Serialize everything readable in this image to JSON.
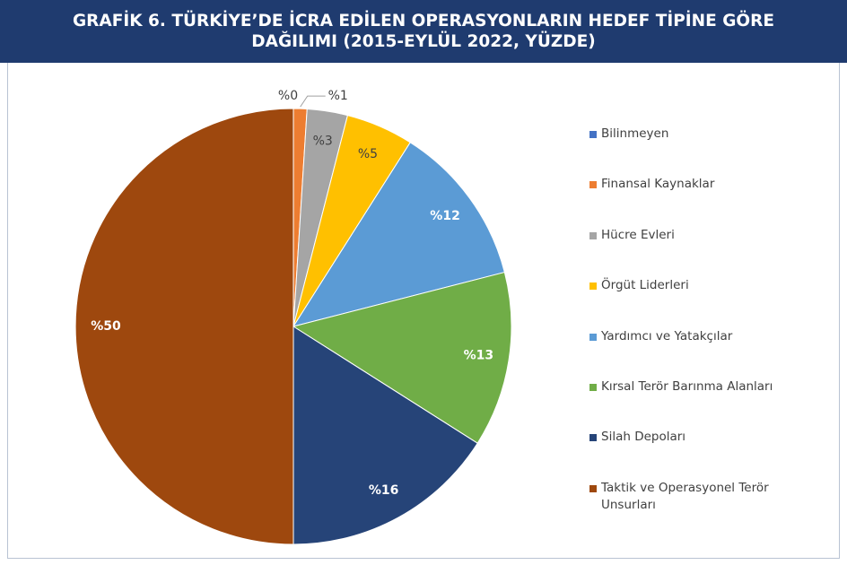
{
  "chart_data": {
    "type": "pie",
    "title": "GRAFİK 6. TÜRKİYE’DE İCRA EDİLEN OPERASYONLARIN HEDEF TİPİNE GÖRE DAĞILIMI (2015-EYLÜL 2022, YÜZDE)",
    "categories": [
      "Bilinmeyen",
      "Finansal Kaynaklar",
      "Hücre Evleri",
      "Örgüt Liderleri",
      "Yardımcı ve Yatakçılar",
      "Kırsal Terör Barınma Alanları",
      "Silah Depoları",
      "Taktik ve Operasyonel Terör Unsurları"
    ],
    "values": [
      0,
      1,
      3,
      5,
      12,
      13,
      16,
      50
    ],
    "value_labels": [
      "%0",
      "%1",
      "%3",
      "%5",
      "%12",
      "%13",
      "%16",
      "%50"
    ],
    "colors": [
      "#4472c4",
      "#ed7d31",
      "#a5a5a5",
      "#ffc000",
      "#5b9bd5",
      "#70ad47",
      "#264478",
      "#9e480e"
    ],
    "legend": "right"
  }
}
